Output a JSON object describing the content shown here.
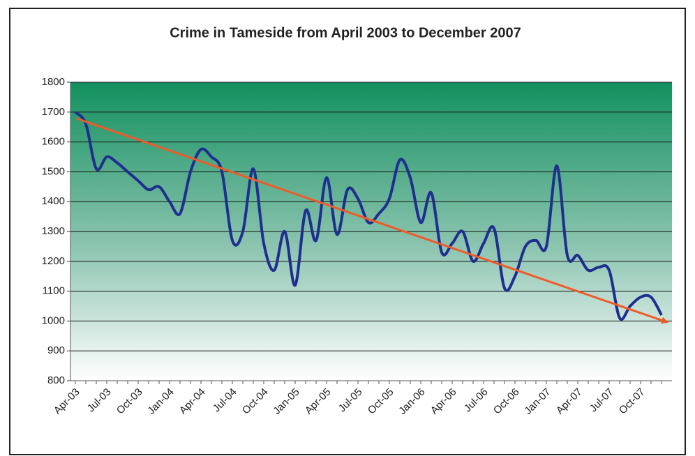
{
  "chart_data": {
    "type": "line",
    "title": "Crime in Tameside from April 2003 to December 2007",
    "categories": [
      "Apr-03",
      null,
      null,
      "Jul-03",
      null,
      null,
      "Oct-03",
      null,
      null,
      "Jan-04",
      null,
      null,
      "Apr-04",
      null,
      null,
      "Jul-04",
      null,
      null,
      "Oct-04",
      null,
      null,
      "Jan-05",
      null,
      null,
      "Apr-05",
      null,
      null,
      "Jul-05",
      null,
      null,
      "Oct-05",
      null,
      null,
      "Jan-06",
      null,
      null,
      "Apr-06",
      null,
      null,
      "Jul-06",
      null,
      null,
      "Oct-06",
      null,
      null,
      "Jan-07",
      null,
      null,
      "Apr-07",
      null,
      null,
      "Jul-07",
      null,
      null,
      "Oct-07",
      null,
      null
    ],
    "series": [
      {
        "color": "#1f2f8f",
        "values": [
          1700,
          1660,
          1510,
          1550,
          1530,
          1500,
          1470,
          1440,
          1450,
          1400,
          1360,
          1500,
          1575,
          1550,
          1500,
          1270,
          1300,
          1510,
          1260,
          1170,
          1300,
          1120,
          1370,
          1270,
          1480,
          1290,
          1440,
          1410,
          1330,
          1360,
          1410,
          1540,
          1480,
          1330,
          1430,
          1230,
          1260,
          1300,
          1200,
          1260,
          1310,
          1110,
          1150,
          1250,
          1270,
          1250,
          1520,
          1220,
          1220,
          1170,
          1180,
          1170,
          1010,
          1050,
          1080,
          1080,
          1020
        ]
      }
    ],
    "ylim": [
      800,
      1800
    ],
    "yticks": [
      800,
      900,
      1000,
      1100,
      1200,
      1300,
      1400,
      1500,
      1600,
      1700,
      1800
    ],
    "grid": true
  }
}
